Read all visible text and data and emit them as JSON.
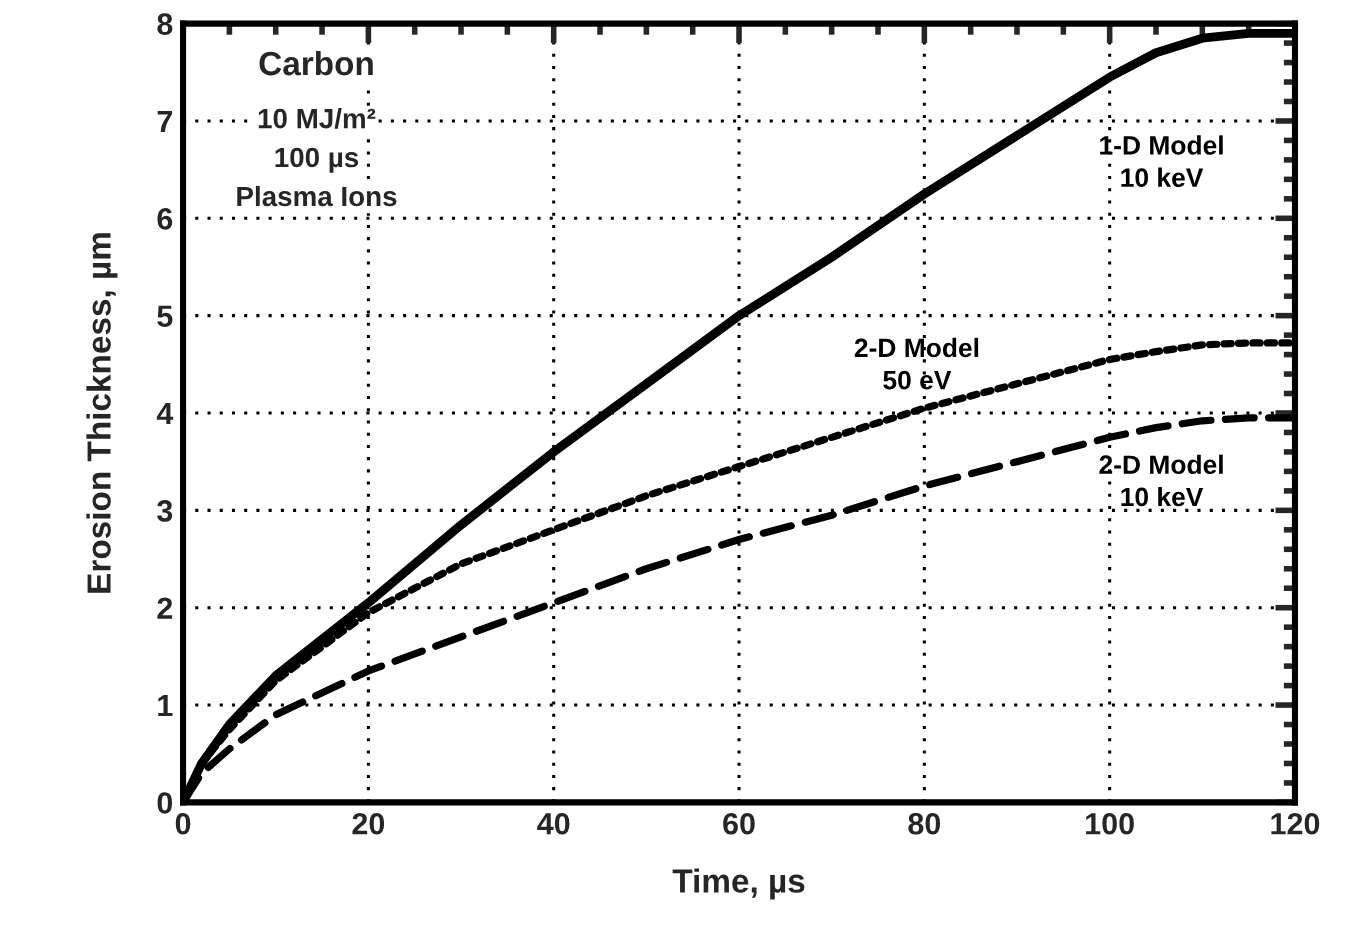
{
  "chart_data": {
    "type": "line",
    "xlabel": "Time, µs",
    "ylabel": "Erosion Thickness, µm",
    "annotations": [
      "Carbon",
      "10 MJ/m²",
      "100 µs",
      "Plasma Ions"
    ],
    "x": [
      0,
      2,
      5,
      10,
      20,
      30,
      40,
      50,
      60,
      70,
      80,
      90,
      100,
      105,
      110,
      115,
      120
    ],
    "series": [
      {
        "name": "1-D Model\n10 keV",
        "color": "#000000",
        "line_style": "solid",
        "values": [
          0,
          0.4,
          0.8,
          1.3,
          2.05,
          2.85,
          3.6,
          4.3,
          5.0,
          5.6,
          6.25,
          6.85,
          7.45,
          7.7,
          7.85,
          7.9,
          7.9
        ]
      },
      {
        "name": "2-D Model\n50 eV",
        "color": "#000000",
        "line_style": "dotted",
        "values": [
          0,
          0.4,
          0.75,
          1.25,
          1.95,
          2.45,
          2.8,
          3.15,
          3.45,
          3.75,
          4.05,
          4.3,
          4.55,
          4.63,
          4.7,
          4.72,
          4.72
        ]
      },
      {
        "name": "2-D Model\n10 keV",
        "color": "#000000",
        "line_style": "dashed",
        "values": [
          0,
          0.3,
          0.55,
          0.9,
          1.35,
          1.7,
          2.05,
          2.4,
          2.7,
          2.95,
          3.25,
          3.5,
          3.75,
          3.85,
          3.92,
          3.95,
          3.95
        ]
      }
    ],
    "xlim": [
      0,
      120
    ],
    "ylim": [
      0,
      8
    ],
    "xticks": [
      0,
      20,
      40,
      60,
      80,
      100,
      120
    ],
    "yticks": [
      0,
      1,
      2,
      3,
      4,
      5,
      6,
      7,
      8
    ],
    "grid": true,
    "legend": false
  }
}
